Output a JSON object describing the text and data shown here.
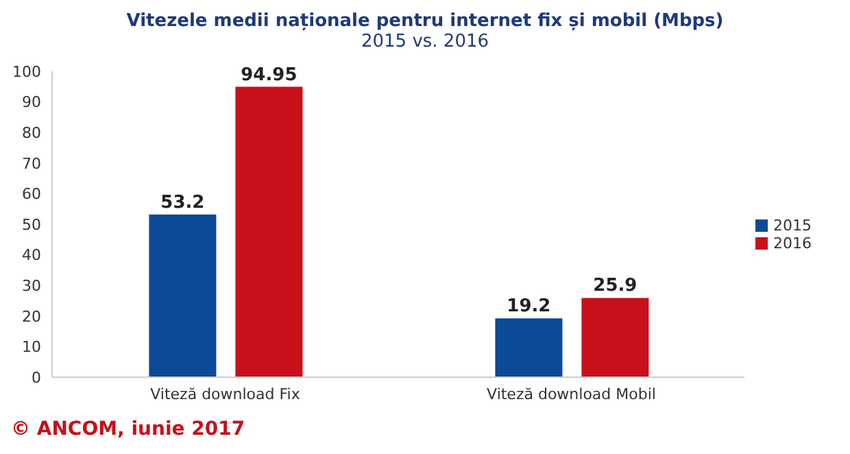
{
  "chart_data": {
    "type": "bar",
    "title": "Vitezele medii naționale pentru internet fix și mobil (Mbps)",
    "subtitle": "2015 vs. 2016",
    "categories": [
      "Viteză download Fix",
      "Viteză download Mobil"
    ],
    "series": [
      {
        "name": "2015",
        "color": "#0b4a94",
        "values": [
          53.2,
          19.2
        ]
      },
      {
        "name": "2016",
        "color": "#c8101a",
        "values": [
          94.95,
          25.9
        ]
      }
    ],
    "ylim": [
      0,
      100
    ],
    "yticks": [
      0,
      10,
      20,
      30,
      40,
      50,
      60,
      70,
      80,
      90,
      100
    ],
    "grid": false,
    "legend": "right",
    "data_labels": true,
    "annotations": [
      "© ANCOM, iunie 2017"
    ]
  }
}
